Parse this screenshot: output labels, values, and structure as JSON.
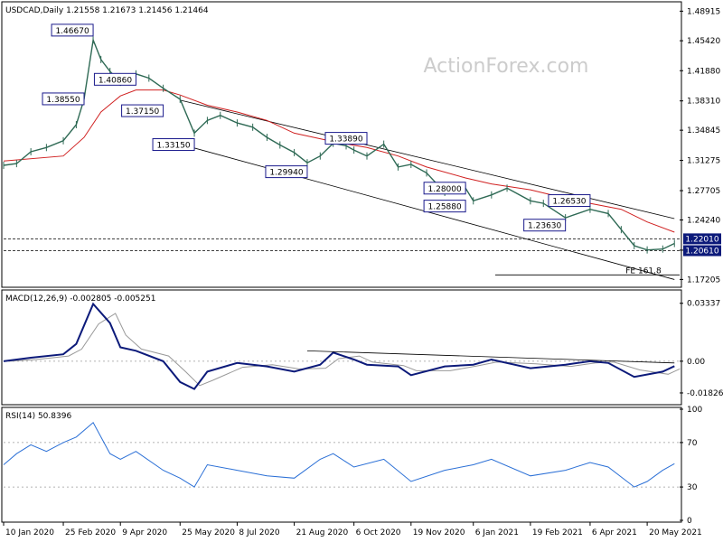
{
  "chart_data": {
    "type": "line",
    "title": "USDCAD,Daily  1.21558 1.21673 1.21456 1.21464",
    "watermark": "ActionForex.com",
    "x_dates": [
      "10 Jan 2020",
      "25 Feb 2020",
      "9 Apr 2020",
      "25 May 2020",
      "8 Jul 2020",
      "21 Aug 2020",
      "6 Oct 2020",
      "19 Nov 2020",
      "6 Jan 2021",
      "19 Feb 2021",
      "6 Apr 2021",
      "20 May 2021"
    ],
    "price_panel": {
      "y_ticks": [
        "1.48915",
        "1.45420",
        "1.41880",
        "1.38310",
        "1.34845",
        "1.31275",
        "1.27705",
        "1.24240",
        "1.20670",
        "1.17205"
      ],
      "ylim": [
        1.165,
        1.497
      ],
      "series_close": [
        [
          "2020-01-10",
          1.307
        ],
        [
          "2020-01-20",
          1.309
        ],
        [
          "2020-01-31",
          1.323
        ],
        [
          "2020-02-12",
          1.328
        ],
        [
          "2020-02-25",
          1.336
        ],
        [
          "2020-03-06",
          1.355
        ],
        [
          "2020-03-12",
          1.385
        ],
        [
          "2020-03-19",
          1.455
        ],
        [
          "2020-03-25",
          1.432
        ],
        [
          "2020-04-01",
          1.418
        ],
        [
          "2020-04-09",
          1.405
        ],
        [
          "2020-04-21",
          1.415
        ],
        [
          "2020-05-01",
          1.41
        ],
        [
          "2020-05-12",
          1.398
        ],
        [
          "2020-05-25",
          1.385
        ],
        [
          "2020-06-05",
          1.345
        ],
        [
          "2020-06-15",
          1.36
        ],
        [
          "2020-06-25",
          1.366
        ],
        [
          "2020-07-08",
          1.357
        ],
        [
          "2020-07-20",
          1.352
        ],
        [
          "2020-07-31",
          1.34
        ],
        [
          "2020-08-10",
          1.331
        ],
        [
          "2020-08-21",
          1.322
        ],
        [
          "2020-08-31",
          1.31
        ],
        [
          "2020-09-10",
          1.318
        ],
        [
          "2020-09-20",
          1.333
        ],
        [
          "2020-09-30",
          1.33
        ],
        [
          "2020-10-06",
          1.325
        ],
        [
          "2020-10-16",
          1.318
        ],
        [
          "2020-10-29",
          1.332
        ],
        [
          "2020-11-09",
          1.305
        ],
        [
          "2020-11-19",
          1.308
        ],
        [
          "2020-12-01",
          1.298
        ],
        [
          "2020-12-15",
          1.275
        ],
        [
          "2020-12-31",
          1.28
        ],
        [
          "2021-01-06",
          1.265
        ],
        [
          "2021-01-20",
          1.272
        ],
        [
          "2021-02-01",
          1.28
        ],
        [
          "2021-02-19",
          1.265
        ],
        [
          "2021-03-01",
          1.262
        ],
        [
          "2021-03-18",
          1.245
        ],
        [
          "2021-04-06",
          1.255
        ],
        [
          "2021-04-20",
          1.25
        ],
        [
          "2021-04-30",
          1.231
        ],
        [
          "2021-05-10",
          1.212
        ],
        [
          "2021-05-20",
          1.207
        ],
        [
          "2021-06-01",
          1.208
        ],
        [
          "2021-06-10",
          1.2146
        ]
      ],
      "series_ma": [
        [
          "2020-01-10",
          1.312
        ],
        [
          "2020-02-25",
          1.318
        ],
        [
          "2020-03-12",
          1.34
        ],
        [
          "2020-03-25",
          1.37
        ],
        [
          "2020-04-09",
          1.389
        ],
        [
          "2020-04-21",
          1.396
        ],
        [
          "2020-05-12",
          1.396
        ],
        [
          "2020-05-25",
          1.39
        ],
        [
          "2020-06-15",
          1.378
        ],
        [
          "2020-07-08",
          1.37
        ],
        [
          "2020-07-31",
          1.36
        ],
        [
          "2020-08-21",
          1.345
        ],
        [
          "2020-09-20",
          1.335
        ],
        [
          "2020-10-16",
          1.328
        ],
        [
          "2020-11-09",
          1.318
        ],
        [
          "2020-12-01",
          1.305
        ],
        [
          "2020-12-31",
          1.292
        ],
        [
          "2021-01-20",
          1.285
        ],
        [
          "2021-02-19",
          1.278
        ],
        [
          "2021-03-18",
          1.268
        ],
        [
          "2021-04-06",
          1.262
        ],
        [
          "2021-04-30",
          1.255
        ],
        [
          "2021-05-20",
          1.24
        ],
        [
          "2021-06-10",
          1.228
        ]
      ],
      "annotations": [
        {
          "text": "1.46670",
          "date": "2020-03-19",
          "value": 1.4667,
          "side": "left"
        },
        {
          "text": "1.38550",
          "date": "2020-03-12",
          "value": 1.3855,
          "side": "left"
        },
        {
          "text": "1.40860",
          "date": "2020-04-21",
          "value": 1.4086,
          "side": "left"
        },
        {
          "text": "1.37150",
          "date": "2020-05-12",
          "value": 1.3715,
          "side": "left"
        },
        {
          "text": "1.33150",
          "date": "2020-06-05",
          "value": 1.3315,
          "side": "left"
        },
        {
          "text": "1.29940",
          "date": "2020-08-31",
          "value": 1.2994,
          "side": "left"
        },
        {
          "text": "1.33890",
          "date": "2020-10-16",
          "value": 1.3389,
          "side": "left"
        },
        {
          "text": "1.28000",
          "date": "2020-12-31",
          "value": 1.28,
          "side": "left"
        },
        {
          "text": "1.25880",
          "date": "2020-12-31",
          "value": 1.2588,
          "side": "left"
        },
        {
          "text": "1.23630",
          "date": "2021-03-18",
          "value": 1.2363,
          "side": "left"
        },
        {
          "text": "1.26530",
          "date": "2021-04-06",
          "value": 1.2653,
          "side": "left"
        }
      ],
      "levels": [
        {
          "text": "1.22010",
          "value": 1.2201,
          "style": "dashed"
        },
        {
          "text": "1.20610",
          "value": 1.2061,
          "style": "dashed"
        }
      ],
      "fe_label": "FE 161.8",
      "fe_value": 1.1775,
      "trend_upper": [
        [
          "2020-05-25",
          1.384
        ],
        [
          "2021-06-10",
          1.244
        ]
      ],
      "trend_lower": [
        [
          "2020-05-25",
          1.332
        ],
        [
          "2021-06-10",
          1.172
        ]
      ]
    },
    "macd_panel": {
      "title": "MACD(12,26,9) -0.002805 -0.005251",
      "y_ticks": [
        "0.03337",
        "0.00",
        "-0.018262"
      ],
      "ylim": [
        -0.024,
        0.04
      ],
      "macd": [
        [
          "2020-01-10",
          0.0
        ],
        [
          "2020-01-31",
          0.002
        ],
        [
          "2020-02-25",
          0.004
        ],
        [
          "2020-03-06",
          0.01
        ],
        [
          "2020-03-19",
          0.033
        ],
        [
          "2020-04-01",
          0.022
        ],
        [
          "2020-04-09",
          0.008
        ],
        [
          "2020-04-21",
          0.006
        ],
        [
          "2020-05-12",
          0.0
        ],
        [
          "2020-05-25",
          -0.012
        ],
        [
          "2020-06-05",
          -0.016
        ],
        [
          "2020-06-15",
          -0.006
        ],
        [
          "2020-07-08",
          -0.001
        ],
        [
          "2020-07-31",
          -0.003
        ],
        [
          "2020-08-21",
          -0.006
        ],
        [
          "2020-09-10",
          -0.002
        ],
        [
          "2020-09-20",
          0.005
        ],
        [
          "2020-10-06",
          0.001
        ],
        [
          "2020-10-16",
          -0.002
        ],
        [
          "2020-11-09",
          -0.003
        ],
        [
          "2020-11-19",
          -0.008
        ],
        [
          "2020-12-15",
          -0.003
        ],
        [
          "2021-01-06",
          -0.002
        ],
        [
          "2021-01-20",
          0.001
        ],
        [
          "2021-02-19",
          -0.004
        ],
        [
          "2021-03-18",
          -0.002
        ],
        [
          "2021-04-06",
          0.0
        ],
        [
          "2021-04-20",
          -0.001
        ],
        [
          "2021-05-10",
          -0.009
        ],
        [
          "2021-06-01",
          -0.006
        ],
        [
          "2021-06-10",
          -0.0028
        ]
      ],
      "trendline": [
        [
          "2020-08-31",
          0.006
        ],
        [
          "2021-06-10",
          -0.001
        ]
      ]
    },
    "rsi_panel": {
      "title": "RSI(14) 50.8396",
      "y_ticks": [
        "100",
        "70",
        "30",
        "0"
      ],
      "ylim": [
        0,
        100
      ],
      "levels": [
        70,
        30
      ],
      "rsi": [
        [
          "2020-01-10",
          50
        ],
        [
          "2020-01-20",
          60
        ],
        [
          "2020-01-31",
          68
        ],
        [
          "2020-02-12",
          62
        ],
        [
          "2020-02-25",
          70
        ],
        [
          "2020-03-06",
          75
        ],
        [
          "2020-03-19",
          88
        ],
        [
          "2020-04-01",
          60
        ],
        [
          "2020-04-09",
          55
        ],
        [
          "2020-04-21",
          62
        ],
        [
          "2020-05-12",
          45
        ],
        [
          "2020-05-25",
          38
        ],
        [
          "2020-06-05",
          30
        ],
        [
          "2020-06-15",
          50
        ],
        [
          "2020-07-08",
          45
        ],
        [
          "2020-07-31",
          40
        ],
        [
          "2020-08-21",
          38
        ],
        [
          "2020-09-10",
          55
        ],
        [
          "2020-09-20",
          60
        ],
        [
          "2020-10-06",
          48
        ],
        [
          "2020-10-29",
          55
        ],
        [
          "2020-11-19",
          35
        ],
        [
          "2020-12-15",
          45
        ],
        [
          "2021-01-06",
          50
        ],
        [
          "2021-01-20",
          55
        ],
        [
          "2021-02-19",
          40
        ],
        [
          "2021-03-18",
          45
        ],
        [
          "2021-04-06",
          52
        ],
        [
          "2021-04-20",
          48
        ],
        [
          "2021-05-10",
          30
        ],
        [
          "2021-05-20",
          35
        ],
        [
          "2021-06-01",
          45
        ],
        [
          "2021-06-10",
          51
        ]
      ]
    }
  }
}
